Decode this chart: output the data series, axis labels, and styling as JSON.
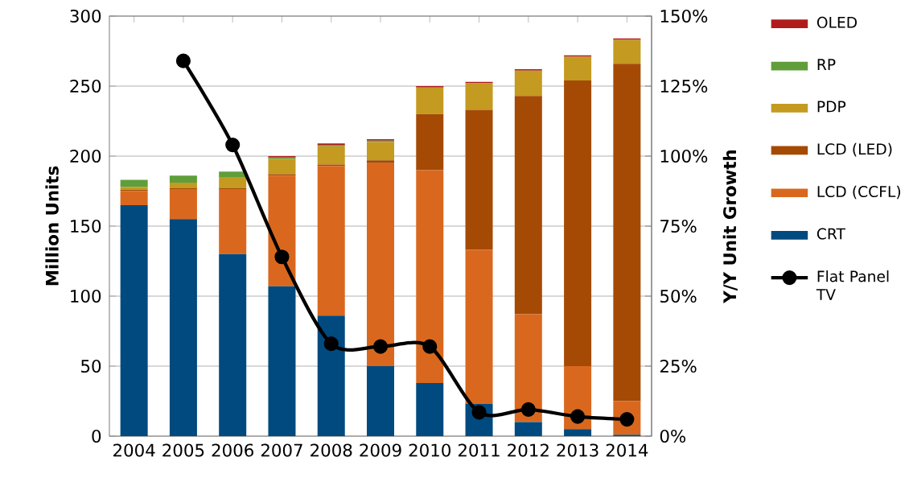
{
  "chart_data": {
    "type": "bar",
    "stacked": true,
    "ylabel": "Million Units",
    "y2label": "Y/Y Unit Growth",
    "categories": [
      "2004",
      "2005",
      "2006",
      "2007",
      "2008",
      "2009",
      "2010",
      "2011",
      "2012",
      "2013",
      "2014"
    ],
    "ylim": [
      0,
      300
    ],
    "yticks": [
      0,
      50,
      100,
      150,
      200,
      250,
      300
    ],
    "y2lim": [
      0,
      150
    ],
    "y2ticks": [
      {
        "value": 0,
        "label": "0%"
      },
      {
        "value": 25,
        "label": "25%"
      },
      {
        "value": 50,
        "label": "50%"
      },
      {
        "value": 75,
        "label": "75%"
      },
      {
        "value": 100,
        "label": "100%"
      },
      {
        "value": 125,
        "label": "125%"
      },
      {
        "value": 150,
        "label": "150%"
      }
    ],
    "grid": "y",
    "legend": "right",
    "series": [
      {
        "name": "CRT",
        "color": "#004a7f",
        "values": [
          165,
          155,
          130,
          107,
          86,
          50,
          38,
          23,
          10,
          5,
          1
        ]
      },
      {
        "name": "LCD (CCFL)",
        "color": "#d9681e",
        "values": [
          10,
          21,
          46,
          79,
          107,
          145,
          152,
          110,
          77,
          45,
          24
        ]
      },
      {
        "name": "LCD (LED)",
        "color": "#a54a05",
        "values": [
          1,
          1,
          1,
          1,
          1,
          2,
          40,
          100,
          156,
          204,
          241
        ]
      },
      {
        "name": "PDP",
        "color": "#c49a20",
        "values": [
          2,
          4,
          8,
          11,
          13,
          13,
          19,
          19,
          18,
          17,
          17
        ]
      },
      {
        "name": "RP",
        "color": "#5f9e3a",
        "values": [
          5,
          5,
          4,
          1,
          1,
          1,
          0,
          0,
          0,
          0,
          0
        ]
      },
      {
        "name": "OLED",
        "color": "#b01c1c",
        "values": [
          0,
          0,
          0,
          1,
          1,
          1,
          1,
          1,
          1,
          1,
          1
        ]
      },
      {
        "name": "Flat Panel TV",
        "type": "line",
        "axis": "y2",
        "marker": "circle",
        "color": "#000000",
        "values": [
          null,
          134,
          104,
          64,
          33,
          32,
          32,
          8.5,
          9.5,
          7,
          6
        ]
      }
    ]
  }
}
